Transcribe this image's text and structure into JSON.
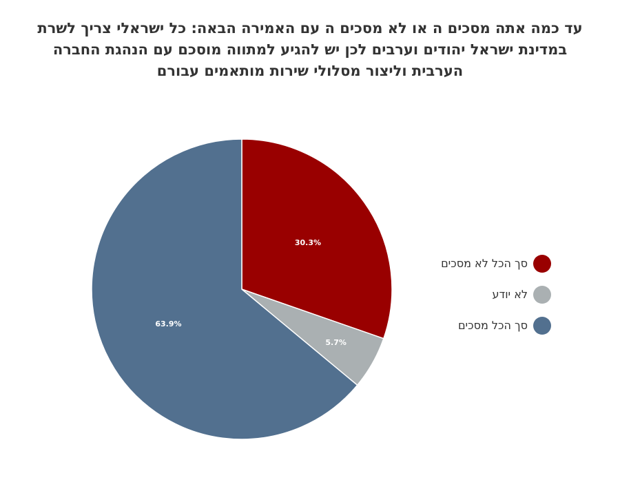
{
  "chart_data": {
    "type": "pie",
    "title_lines": [
      "עד כמה אתה מסכים ה או לא מסכים ה עם האמירה הבאה: כל ישראלי צריך לשרת",
      "במדינת ישראל יהודים וערבים  לכן יש להגיע למתווה מוסכם עם הנהגת החברה",
      "הערבית וליצור מסלולי שירות מותאמים עבורם"
    ],
    "slices": [
      {
        "name": "סך הכל לא מסכים",
        "value": 30.3,
        "label": "30.3%",
        "color": "#990000"
      },
      {
        "name": "לא יודע",
        "value": 5.7,
        "label": "5.7%",
        "color": "#aab0b2"
      },
      {
        "name": "סך הכל מסכים",
        "value": 63.9,
        "label": "63.9%",
        "color": "#52708f"
      }
    ],
    "legend_position": "right"
  }
}
